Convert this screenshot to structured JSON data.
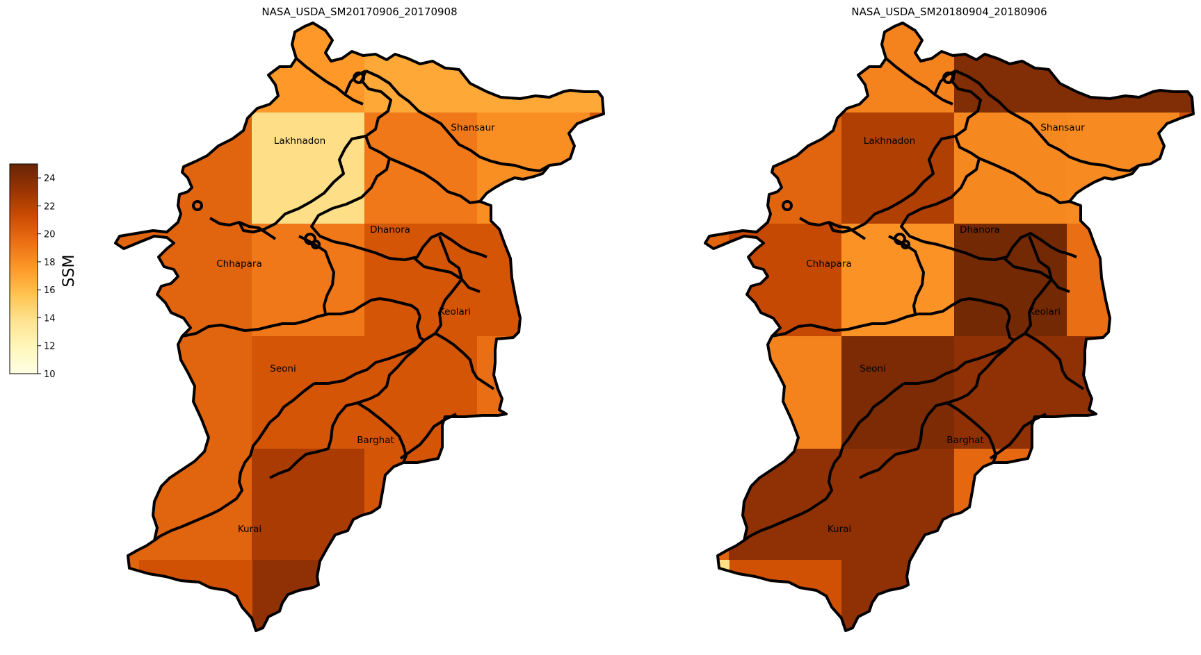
{
  "colorbar": {
    "label": "SSM",
    "ticks": [
      "10",
      "12",
      "14",
      "16",
      "18",
      "20",
      "22",
      "24"
    ],
    "range": [
      10,
      25
    ],
    "colormap": "YlOrBr",
    "stops": [
      "#ffffe5",
      "#fff7bc",
      "#fee391",
      "#fec44f",
      "#fe9929",
      "#ec7014",
      "#cc4c02",
      "#993404",
      "#662506"
    ]
  },
  "maps": [
    {
      "title": "NASA_USDA_SM20170906_20170908",
      "cells": [
        [
          0,
          0,
          17.5
        ],
        [
          1,
          0,
          16.8
        ],
        [
          2,
          0,
          16.8
        ],
        [
          3,
          0,
          16.8
        ],
        [
          4,
          0,
          13.5
        ],
        [
          0,
          1,
          14.0
        ],
        [
          1,
          1,
          19.0
        ],
        [
          2,
          1,
          18.0
        ],
        [
          3,
          1,
          20.8
        ],
        [
          4,
          1,
          15.5
        ],
        [
          0,
          2,
          19.0
        ],
        [
          1,
          2,
          20.8
        ],
        [
          2,
          2,
          20.8
        ],
        [
          3,
          2,
          23.0
        ],
        [
          0,
          3,
          20.8
        ],
        [
          1,
          3,
          20.8
        ],
        [
          2,
          3,
          19.5
        ],
        [
          3,
          3,
          20.8
        ],
        [
          0,
          4,
          22.5
        ],
        [
          1,
          4,
          20.8
        ],
        [
          2,
          4,
          20.2
        ],
        [
          0,
          5,
          23.5
        ],
        [
          1,
          5,
          20.0
        ],
        [
          -1,
          5,
          21.0
        ]
      ]
    },
    {
      "title": "NASA_USDA_SM20180904_20180906",
      "cells": [
        [
          0,
          0,
          18.5
        ],
        [
          1,
          0,
          24.0
        ],
        [
          2,
          0,
          24.0
        ],
        [
          3,
          0,
          24.0
        ],
        [
          4,
          0,
          24.0
        ],
        [
          0,
          1,
          22.3
        ],
        [
          1,
          1,
          18.3
        ],
        [
          2,
          1,
          18.2
        ],
        [
          3,
          1,
          21.0
        ],
        [
          4,
          1,
          24.0
        ],
        [
          -1,
          2,
          21.5
        ],
        [
          0,
          2,
          17.8
        ],
        [
          1,
          2,
          24.5
        ],
        [
          2,
          2,
          19.5
        ],
        [
          -1,
          3,
          18.5
        ],
        [
          0,
          3,
          24.2
        ],
        [
          1,
          3,
          23.5
        ],
        [
          2,
          3,
          23.5
        ],
        [
          -1,
          4,
          23.5
        ],
        [
          0,
          4,
          23.5
        ],
        [
          1,
          4,
          19.8
        ],
        [
          -1,
          5,
          21.0
        ],
        [
          0,
          5,
          23.5
        ],
        [
          -2,
          5,
          14.0
        ]
      ]
    }
  ],
  "districts": [
    {
      "name": "Lakhnadon"
    },
    {
      "name": "Shansaur"
    },
    {
      "name": "Dhanora"
    },
    {
      "name": "Chhapara"
    },
    {
      "name": "Keolari"
    },
    {
      "name": "Seoni"
    },
    {
      "name": "Barghat"
    },
    {
      "name": "Kurai"
    }
  ]
}
